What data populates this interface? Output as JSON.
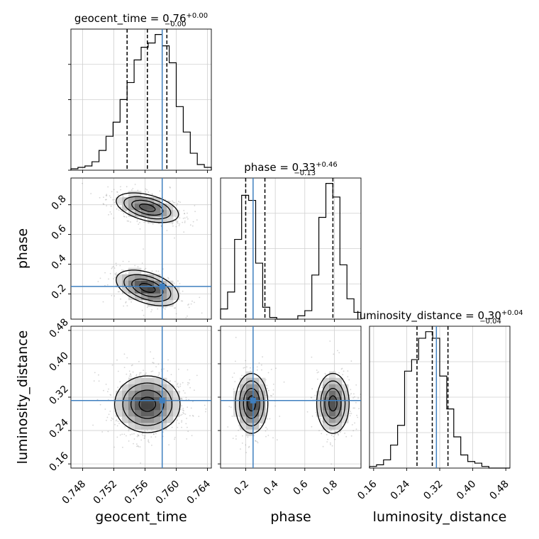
{
  "chart_data": {
    "type": "corner",
    "grid": true,
    "colors": {
      "truth": "#3f7fbf",
      "hist": "#000000",
      "quantile": "#000000",
      "density": "#3c3c3c"
    },
    "parameters": [
      {
        "name": "geocent_time",
        "title_base": "geocent_time = 0.76",
        "title_sup": "+0.00",
        "title_sub": "−0.00",
        "axis_label": "geocent_time",
        "range": [
          0.7465,
          0.7645
        ],
        "ticks": [
          0.748,
          0.752,
          0.756,
          0.76,
          0.764
        ],
        "tick_labels": [
          "0.748",
          "0.752",
          "0.756",
          "0.760",
          "0.764"
        ],
        "truth": 0.7582,
        "quantiles": [
          0.7537,
          0.7563,
          0.7588
        ],
        "hist": {
          "edges_start": 0.7465,
          "bin_width": 0.0009,
          "heights": [
            0.01,
            0.02,
            0.03,
            0.06,
            0.14,
            0.24,
            0.34,
            0.5,
            0.62,
            0.78,
            0.87,
            0.9,
            0.96,
            0.88,
            0.76,
            0.45,
            0.27,
            0.12,
            0.04,
            0.02
          ]
        }
      },
      {
        "name": "phase",
        "title_base": "phase = 0.33",
        "title_sup": "+0.46",
        "title_sub": "−0.13",
        "axis_label": "phase",
        "range": [
          0.03,
          0.98
        ],
        "ticks": [
          0.2,
          0.4,
          0.6,
          0.8
        ],
        "tick_labels": [
          "0.2",
          "0.4",
          "0.6",
          "0.8"
        ],
        "truth": 0.25,
        "quantiles": [
          0.2,
          0.33,
          0.79
        ],
        "hist": {
          "edges_start": 0.03,
          "bin_width": 0.0475,
          "heights": [
            0.06,
            0.16,
            0.47,
            0.73,
            0.7,
            0.33,
            0.07,
            0.01,
            0.0,
            0.0,
            0.0,
            0.02,
            0.05,
            0.26,
            0.6,
            0.8,
            0.72,
            0.32,
            0.12,
            0.04
          ]
        }
      },
      {
        "name": "luminosity_distance",
        "title_base": "luminosity_distance = 0.30",
        "title_sup": "+0.04",
        "title_sub": "−0.04",
        "axis_label": "luminosity_distance",
        "range": [
          0.15,
          0.49
        ],
        "ticks": [
          0.16,
          0.24,
          0.32,
          0.4,
          0.48
        ],
        "tick_labels": [
          "0.16",
          "0.24",
          "0.32",
          "0.40",
          "0.48"
        ],
        "truth": 0.312,
        "quantiles": [
          0.265,
          0.302,
          0.34
        ],
        "hist": {
          "edges_start": 0.15,
          "bin_width": 0.017,
          "heights": [
            0.01,
            0.02,
            0.05,
            0.14,
            0.26,
            0.59,
            0.66,
            0.79,
            0.83,
            0.79,
            0.56,
            0.36,
            0.19,
            0.08,
            0.04,
            0.03,
            0.01,
            0.0,
            0.0,
            0.0
          ]
        }
      }
    ],
    "pairs": [
      {
        "x": "geocent_time",
        "y": "phase",
        "y_ticks": [
          0.2,
          0.4,
          0.6,
          0.8
        ],
        "y_tick_labels": [
          "0.2",
          "0.4",
          "0.6",
          "0.8"
        ],
        "blobs": [
          {
            "cx": 0.7563,
            "cy": 0.24,
            "sx": 0.002,
            "sy": 0.06,
            "rho": -0.45,
            "weight": 1.0
          },
          {
            "cx": 0.7563,
            "cy": 0.78,
            "sx": 0.002,
            "sy": 0.05,
            "rho": -0.45,
            "weight": 0.85
          }
        ]
      },
      {
        "x": "geocent_time",
        "y": "luminosity_distance",
        "y_ticks": [
          0.16,
          0.24,
          0.32,
          0.4,
          0.48
        ],
        "y_tick_labels": [
          "0.16",
          "0.24",
          "0.32",
          "0.40",
          "0.48"
        ],
        "blobs": [
          {
            "cx": 0.7563,
            "cy": 0.303,
            "sx": 0.0021,
            "sy": 0.034,
            "rho": 0.0,
            "weight": 1.0
          }
        ]
      },
      {
        "x": "phase",
        "y": "luminosity_distance",
        "y_ticks": [
          0.16,
          0.24,
          0.32,
          0.4,
          0.48
        ],
        "y_tick_labels": [
          "0.16",
          "0.24",
          "0.32",
          "0.40",
          "0.48"
        ],
        "blobs": [
          {
            "cx": 0.24,
            "cy": 0.305,
            "sx": 0.055,
            "sy": 0.036,
            "rho": 0.0,
            "weight": 1.0
          },
          {
            "cx": 0.79,
            "cy": 0.305,
            "sx": 0.055,
            "sy": 0.036,
            "rho": 0.0,
            "weight": 0.9
          }
        ]
      }
    ]
  }
}
